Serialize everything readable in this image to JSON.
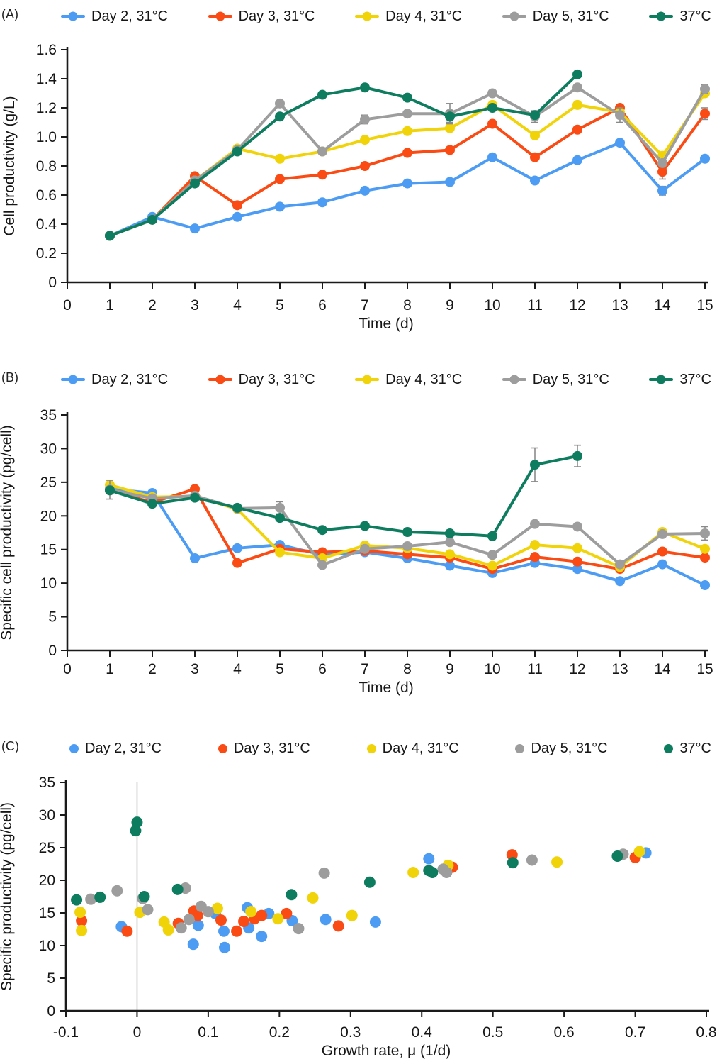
{
  "panel_labels": [
    "(A)",
    "(B)",
    "(C)"
  ],
  "colors": {
    "day2": "#4D9CF3",
    "day3": "#FA4B14",
    "day4": "#F0D409",
    "day5": "#9D9D9D",
    "t37": "#0E7D5F",
    "error_bar": "#8A8A8A",
    "axis": "#1A1A1A",
    "zero_gridline": "#D9D9D9"
  },
  "chart_data": [
    {
      "type": "line",
      "panel": "(A)",
      "xlabel": "Time (d)",
      "ylabel": "Cell productivity (g/L)",
      "xlim": [
        0,
        15
      ],
      "ylim": [
        0,
        1.6
      ],
      "grid": false,
      "legend_position": "top",
      "xticks": {
        "values": [
          0,
          1,
          2,
          3,
          4,
          5,
          6,
          7,
          8,
          9,
          10,
          11,
          12,
          13,
          14,
          15
        ],
        "labels": [
          "0",
          "1",
          "2",
          "3",
          "4",
          "5",
          "6",
          "7",
          "8",
          "9",
          "10",
          "11",
          "12",
          "13",
          "14",
          "15"
        ]
      },
      "yticks": {
        "values": [
          0,
          0.2,
          0.4,
          0.6,
          0.8,
          1.0,
          1.2,
          1.4,
          1.6
        ],
        "labels": [
          "0",
          "0.2",
          "0.4",
          "0.6",
          "0.8",
          "1.0",
          "1.2",
          "1.4",
          "1.6"
        ]
      },
      "x": [
        1,
        2,
        3,
        4,
        5,
        6,
        7,
        8,
        9,
        10,
        11,
        12,
        13,
        14,
        15
      ],
      "series": [
        {
          "name": "Day 2, 31°C",
          "color": "#4D9CF3",
          "values": [
            0.32,
            0.45,
            0.37,
            0.45,
            0.52,
            0.55,
            0.63,
            0.68,
            0.69,
            0.86,
            0.7,
            0.84,
            0.96,
            0.63,
            0.85
          ],
          "err": [
            0,
            0,
            0,
            0,
            0,
            0,
            0,
            0,
            0,
            0,
            0,
            0,
            0,
            0.03,
            0
          ]
        },
        {
          "name": "Day 3, 31°C",
          "color": "#FA4B14",
          "values": [
            0.32,
            0.43,
            0.73,
            0.53,
            0.71,
            0.74,
            0.8,
            0.89,
            0.91,
            1.09,
            0.86,
            1.05,
            1.2,
            0.76,
            1.16
          ],
          "err": [
            0,
            0,
            0,
            0,
            0,
            0,
            0,
            0,
            0,
            0,
            0,
            0,
            0,
            0.05,
            0.04
          ]
        },
        {
          "name": "Day 4, 31°C",
          "color": "#F0D409",
          "values": [
            0.32,
            0.43,
            0.7,
            0.92,
            0.85,
            0.9,
            0.98,
            1.04,
            1.06,
            1.22,
            1.01,
            1.22,
            1.17,
            0.87,
            1.3
          ],
          "err": [
            0,
            0,
            0,
            0,
            0,
            0,
            0,
            0,
            0,
            0,
            0,
            0,
            0,
            0,
            0
          ]
        },
        {
          "name": "Day 5, 31°C",
          "color": "#9D9D9D",
          "values": [
            0.32,
            0.43,
            0.7,
            0.91,
            1.23,
            0.9,
            1.12,
            1.16,
            1.16,
            1.3,
            1.14,
            1.34,
            1.15,
            0.82,
            1.33
          ],
          "err": [
            0,
            0,
            0,
            0,
            0,
            0,
            0.03,
            0,
            0.07,
            0,
            0.04,
            0,
            0.05,
            0,
            0.03
          ]
        },
        {
          "name": "37°C",
          "color": "#0E7D5F",
          "values": [
            0.32,
            0.43,
            0.68,
            0.9,
            1.14,
            1.29,
            1.34,
            1.27,
            1.14,
            1.2,
            1.15,
            1.43,
            null,
            null,
            null
          ],
          "err": [
            0,
            0,
            0,
            0,
            0,
            0,
            0,
            0,
            0.04,
            0,
            0,
            0.02,
            0,
            0,
            0
          ]
        }
      ]
    },
    {
      "type": "line",
      "panel": "(B)",
      "xlabel": "Time (d)",
      "ylabel": "Specific cell productivity (pg/cell)",
      "xlim": [
        0,
        15
      ],
      "ylim": [
        0,
        35
      ],
      "grid": false,
      "legend_position": "top",
      "xticks": {
        "values": [
          0,
          1,
          2,
          3,
          4,
          5,
          6,
          7,
          8,
          9,
          10,
          11,
          12,
          13,
          14,
          15
        ],
        "labels": [
          "0",
          "1",
          "2",
          "3",
          "4",
          "5",
          "6",
          "7",
          "8",
          "9",
          "10",
          "11",
          "12",
          "13",
          "14",
          "15"
        ]
      },
      "yticks": {
        "values": [
          0,
          5,
          10,
          15,
          20,
          25,
          30,
          35
        ],
        "labels": [
          "0",
          "5",
          "10",
          "15",
          "20",
          "25",
          "30",
          "35"
        ]
      },
      "x": [
        1,
        2,
        3,
        4,
        5,
        6,
        7,
        8,
        9,
        10,
        11,
        12,
        13,
        14,
        15
      ],
      "series": [
        {
          "name": "Day 2, 31°C",
          "color": "#4D9CF3",
          "values": [
            24.0,
            23.4,
            13.7,
            15.2,
            15.7,
            14.2,
            14.6,
            13.7,
            12.6,
            11.5,
            13.0,
            12.1,
            10.3,
            12.8,
            9.7
          ],
          "err": [
            0,
            0,
            0,
            0,
            0,
            0,
            0,
            0,
            0,
            0,
            0,
            0,
            0,
            0,
            0
          ]
        },
        {
          "name": "Day 3, 31°C",
          "color": "#FA4B14",
          "values": [
            23.8,
            22.0,
            24.0,
            13.0,
            15.1,
            14.6,
            14.8,
            14.3,
            13.8,
            12.1,
            13.9,
            13.2,
            12.1,
            14.7,
            13.8
          ],
          "err": [
            0,
            0,
            0,
            0,
            0,
            0,
            0,
            0,
            0,
            0,
            0,
            0,
            0,
            0,
            0
          ]
        },
        {
          "name": "Day 4, 31°C",
          "color": "#F0D409",
          "values": [
            24.6,
            22.8,
            22.9,
            21.0,
            14.6,
            13.7,
            15.6,
            15.2,
            14.3,
            12.6,
            15.7,
            15.2,
            12.4,
            17.6,
            15.1
          ],
          "err": [
            0,
            0,
            0,
            0,
            0,
            0,
            0,
            0,
            0,
            0,
            0,
            0,
            0,
            0,
            0
          ]
        },
        {
          "name": "Day 5, 31°C",
          "color": "#9D9D9D",
          "values": [
            23.9,
            22.6,
            23.0,
            21.1,
            21.2,
            12.7,
            15.1,
            15.5,
            16.1,
            14.2,
            18.8,
            18.4,
            12.8,
            17.3,
            17.4
          ],
          "err": [
            1.4,
            0,
            0,
            0,
            0.9,
            0,
            0,
            0,
            0,
            0,
            0,
            0,
            0,
            0,
            1.0
          ]
        },
        {
          "name": "37°C",
          "color": "#0E7D5F",
          "values": [
            23.8,
            21.8,
            22.7,
            21.2,
            19.7,
            17.9,
            18.5,
            17.6,
            17.4,
            17.0,
            27.6,
            28.9,
            null,
            null,
            null
          ],
          "err": [
            0,
            0,
            0,
            0,
            0,
            0,
            0,
            0,
            0.5,
            0.5,
            2.5,
            1.6,
            0,
            0,
            0
          ]
        }
      ]
    },
    {
      "type": "scatter",
      "panel": "(C)",
      "xlabel": "Growth rate, μ (1/d)",
      "ylabel": "Specific productivity (pg/cell)",
      "xlim": [
        -0.1,
        0.8
      ],
      "ylim": [
        0,
        35
      ],
      "grid": false,
      "zero_line": true,
      "legend_position": "top",
      "xticks": {
        "values": [
          -0.1,
          0,
          0.1,
          0.2,
          0.3,
          0.4,
          0.5,
          0.6,
          0.7,
          0.8
        ],
        "labels": [
          "-0.1",
          "0",
          "0.1",
          "0.2",
          "0.3",
          "0.4",
          "0.5",
          "0.6",
          "0.7",
          "0.8"
        ]
      },
      "yticks": {
        "values": [
          0,
          5,
          10,
          15,
          20,
          25,
          30,
          35
        ],
        "labels": [
          "0",
          "5",
          "10",
          "15",
          "20",
          "25",
          "30",
          "35"
        ]
      },
      "series": [
        {
          "name": "Day 2, 31°C",
          "color": "#4D9CF3",
          "points": [
            [
              -0.022,
              12.9
            ],
            [
              0.079,
              10.2
            ],
            [
              0.086,
              13.1
            ],
            [
              0.11,
              14.9
            ],
            [
              0.122,
              12.2
            ],
            [
              0.123,
              9.7
            ],
            [
              0.155,
              15.8
            ],
            [
              0.157,
              12.7
            ],
            [
              0.175,
              11.4
            ],
            [
              0.185,
              14.9
            ],
            [
              0.218,
              13.8
            ],
            [
              0.265,
              14.0
            ],
            [
              0.335,
              13.6
            ],
            [
              0.41,
              23.3
            ],
            [
              0.715,
              24.2
            ]
          ]
        },
        {
          "name": "Day 3, 31°C",
          "color": "#FA4B14",
          "points": [
            [
              -0.078,
              13.8
            ],
            [
              -0.014,
              12.2
            ],
            [
              0.058,
              13.4
            ],
            [
              0.08,
              15.3
            ],
            [
              0.085,
              14.6
            ],
            [
              0.118,
              13.9
            ],
            [
              0.14,
              12.2
            ],
            [
              0.15,
              13.7
            ],
            [
              0.165,
              14.1
            ],
            [
              0.175,
              14.6
            ],
            [
              0.21,
              14.9
            ],
            [
              0.283,
              13.0
            ],
            [
              0.443,
              22.0
            ],
            [
              0.527,
              23.9
            ],
            [
              0.7,
              23.5
            ]
          ]
        },
        {
          "name": "Day 4, 31°C",
          "color": "#F0D409",
          "points": [
            [
              -0.08,
              15.1
            ],
            [
              -0.078,
              12.3
            ],
            [
              0.004,
              15.1
            ],
            [
              0.038,
              13.6
            ],
            [
              0.044,
              12.4
            ],
            [
              0.113,
              15.7
            ],
            [
              0.16,
              15.2
            ],
            [
              0.198,
              14.1
            ],
            [
              0.247,
              17.3
            ],
            [
              0.302,
              14.6
            ],
            [
              0.388,
              21.2
            ],
            [
              0.437,
              22.3
            ],
            [
              0.59,
              22.8
            ],
            [
              0.706,
              24.4
            ]
          ]
        },
        {
          "name": "Day 5, 31°C",
          "color": "#9D9D9D",
          "points": [
            [
              -0.065,
              17.1
            ],
            [
              -0.028,
              18.4
            ],
            [
              0.008,
              17.2
            ],
            [
              0.015,
              15.5
            ],
            [
              0.062,
              12.7
            ],
            [
              0.068,
              18.8
            ],
            [
              0.073,
              14.0
            ],
            [
              0.09,
              16.0
            ],
            [
              0.1,
              15.2
            ],
            [
              0.227,
              12.6
            ],
            [
              0.263,
              21.1
            ],
            [
              0.43,
              21.7
            ],
            [
              0.435,
              21.2
            ],
            [
              0.555,
              23.1
            ],
            [
              0.683,
              24.0
            ]
          ]
        },
        {
          "name": "37°C",
          "color": "#0E7D5F",
          "points": [
            [
              -0.085,
              17.0
            ],
            [
              -0.052,
              17.4
            ],
            [
              -0.002,
              27.6
            ],
            [
              0.0,
              28.9
            ],
            [
              0.01,
              17.5
            ],
            [
              0.057,
              18.6
            ],
            [
              0.217,
              17.8
            ],
            [
              0.327,
              19.7
            ],
            [
              0.41,
              21.5
            ],
            [
              0.415,
              21.2
            ],
            [
              0.528,
              22.7
            ],
            [
              0.675,
              23.7
            ]
          ]
        }
      ]
    }
  ]
}
